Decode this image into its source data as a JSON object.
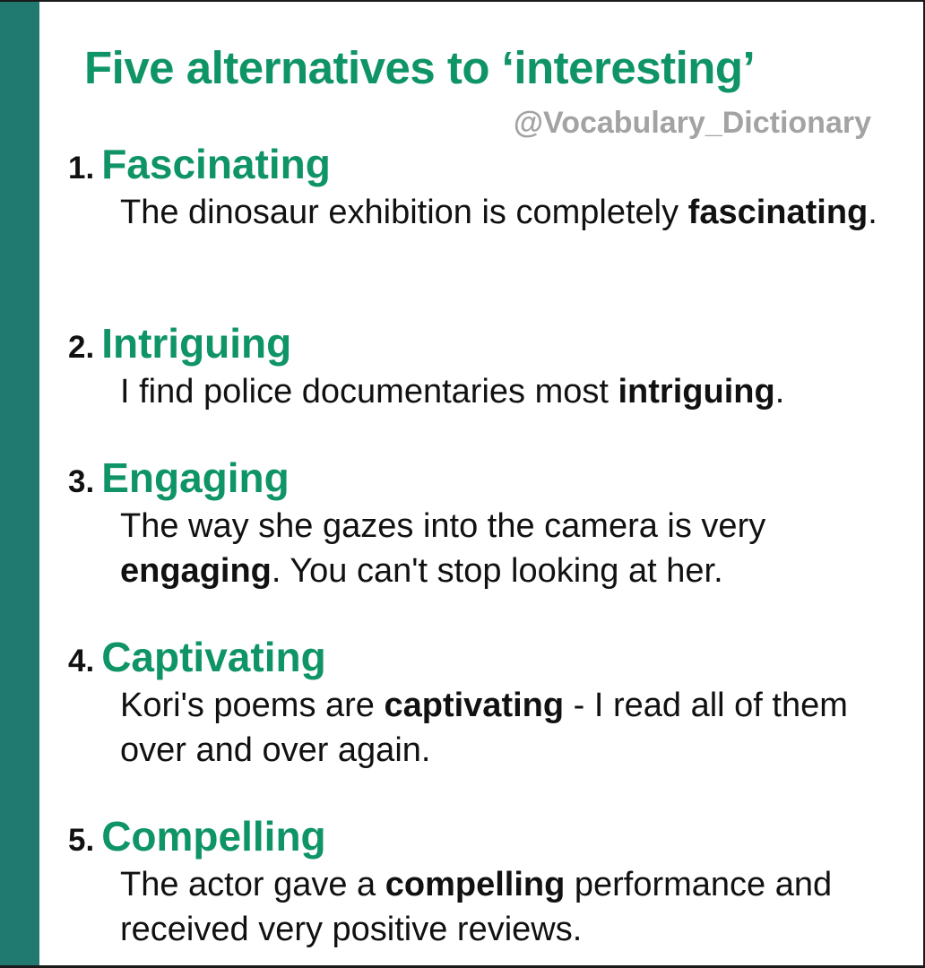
{
  "title": "Five alternatives to ‘interesting’",
  "handle": "@Vocabulary_Dictionary",
  "colors": {
    "accent_green": "#0f9466",
    "side_bar": "#217a6f",
    "handle_gray": "#a3a3a3"
  },
  "items": [
    {
      "number": "1.",
      "word": "Fascinating",
      "before": "The dinosaur exhibition is completely ",
      "bold": "fascinating",
      "after": "."
    },
    {
      "number": "2.",
      "word": "Intriguing",
      "before": "I find police documentaries most ",
      "bold": "intriguing",
      "after": "."
    },
    {
      "number": "3.",
      "word": "Engaging",
      "before": "The way she gazes into the camera is very ",
      "bold": "engaging",
      "after": ". You can't stop looking at her."
    },
    {
      "number": "4.",
      "word": "Captivating",
      "before": "Kori's poems are ",
      "bold": "captivating",
      "after": " - I read all of them over and over again."
    },
    {
      "number": "5.",
      "word": "Compelling",
      "before": "The actor gave a ",
      "bold": "compelling",
      "after": " performance and received very positive reviews."
    }
  ]
}
